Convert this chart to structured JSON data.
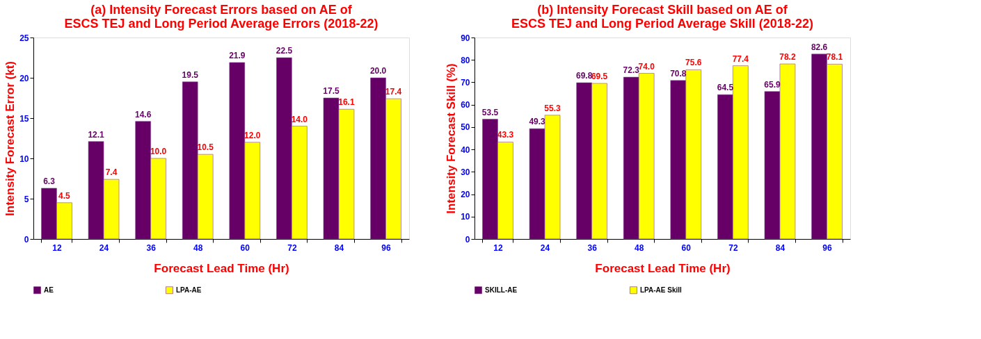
{
  "chart_data": [
    {
      "type": "bar",
      "title": "(a) Intensity Forecast Errors based on AE of ESCS TEJ and Long Period Average Errors (2018-22)",
      "xlabel": "Forecast Lead Time (Hr)",
      "ylabel": "Intensity Forecast Error  (kt)",
      "categories": [
        "12",
        "24",
        "36",
        "48",
        "60",
        "72",
        "84",
        "96"
      ],
      "series": [
        {
          "name": "AE",
          "color": "#660066",
          "values": [
            6.3,
            12.1,
            14.6,
            19.5,
            21.9,
            22.5,
            17.5,
            20.0
          ],
          "value_labels": [
            "6.3",
            "12.1",
            "14.6",
            "19.5",
            "21.9",
            "22.5",
            "17.5",
            "20.0"
          ]
        },
        {
          "name": "LPA-AE",
          "color": "#ffff00",
          "values": [
            4.5,
            7.4,
            10.0,
            10.5,
            12.0,
            14.0,
            16.1,
            17.4
          ],
          "value_labels": [
            "4.5",
            "7.4",
            "10.0",
            "10.5",
            "12.0",
            "14.0",
            "16.1",
            "17.4"
          ]
        }
      ],
      "ylim": [
        0,
        25
      ],
      "yticks": [
        0,
        5,
        10,
        15,
        20,
        25
      ],
      "grid": false,
      "legend": "bottom"
    },
    {
      "type": "bar",
      "title": "(b) Intensity Forecast  Skill based on AE of  ESCS TEJ and Long Period Average Skill (2018-22)",
      "xlabel": "Forecast Lead Time (Hr)",
      "ylabel": "Intensity Forecast Skill  (%)",
      "categories": [
        "12",
        "24",
        "36",
        "48",
        "60",
        "72",
        "84",
        "96"
      ],
      "series": [
        {
          "name": "SKILL-AE",
          "color": "#660066",
          "values": [
            53.5,
            49.3,
            69.8,
            72.3,
            70.8,
            64.5,
            65.9,
            82.6
          ],
          "value_labels": [
            "53.5",
            "49.3",
            "69.8",
            "72.3",
            "70.8",
            "64.5",
            "65.9",
            "82.6"
          ]
        },
        {
          "name": "LPA-AE Skill",
          "color": "#ffff00",
          "values": [
            43.3,
            55.3,
            69.5,
            74.0,
            75.6,
            77.4,
            78.2,
            78.1
          ],
          "value_labels": [
            "43.3",
            "55.3",
            "69.5",
            "74.0",
            "75.6",
            "77.4",
            "78.2",
            "78.1"
          ]
        }
      ],
      "ylim": [
        0,
        90
      ],
      "yticks": [
        0,
        10,
        20,
        30,
        40,
        50,
        60,
        70,
        80,
        90
      ],
      "grid": false,
      "legend": "bottom"
    }
  ]
}
